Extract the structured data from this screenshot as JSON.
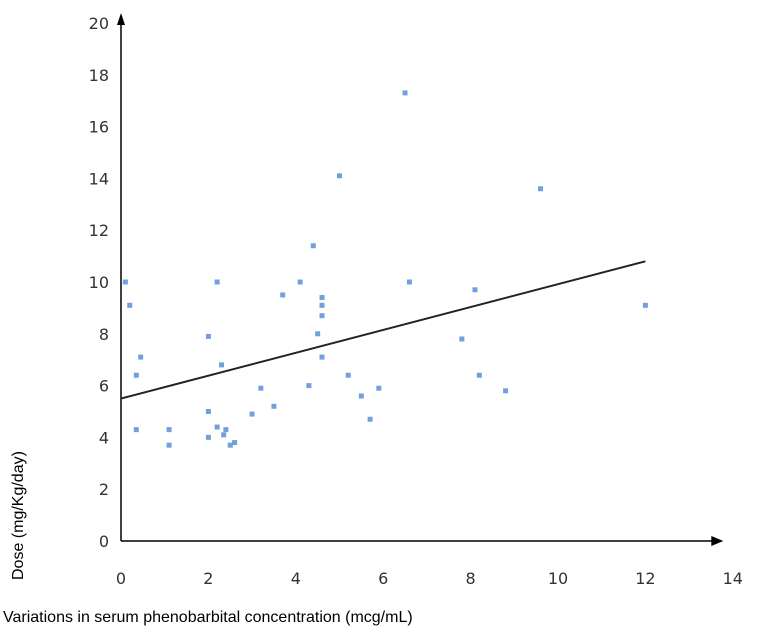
{
  "chart_data": {
    "type": "scatter",
    "title": "",
    "xlabel": "Variations in serum phenobarbital concentration (mcg/mL)",
    "ylabel": "Dose (mg/Kg/day)",
    "xlim": [
      0,
      14
    ],
    "ylim": [
      0,
      20
    ],
    "x_ticks": [
      "0",
      "2",
      "4",
      "6",
      "8",
      "10",
      "12",
      "14"
    ],
    "y_ticks": [
      "0",
      "2",
      "4",
      "6",
      "8",
      "10",
      "12",
      "14",
      "16",
      "18",
      "20"
    ],
    "grid": false,
    "legend": "none",
    "colors": {
      "points": "#5b8fd6",
      "trendline": "#222222",
      "axis": "#000000"
    },
    "points": [
      {
        "x": 0.1,
        "y": 10.0
      },
      {
        "x": 0.2,
        "y": 9.1
      },
      {
        "x": 0.35,
        "y": 6.4
      },
      {
        "x": 0.45,
        "y": 7.1
      },
      {
        "x": 0.35,
        "y": 4.3
      },
      {
        "x": 1.1,
        "y": 4.3
      },
      {
        "x": 1.1,
        "y": 3.7
      },
      {
        "x": 2.0,
        "y": 7.9
      },
      {
        "x": 2.0,
        "y": 5.0
      },
      {
        "x": 2.0,
        "y": 4.0
      },
      {
        "x": 2.2,
        "y": 10.0
      },
      {
        "x": 2.2,
        "y": 4.4
      },
      {
        "x": 2.3,
        "y": 6.8
      },
      {
        "x": 2.35,
        "y": 4.1
      },
      {
        "x": 2.4,
        "y": 4.3
      },
      {
        "x": 2.5,
        "y": 3.7
      },
      {
        "x": 2.6,
        "y": 3.8
      },
      {
        "x": 3.0,
        "y": 4.9
      },
      {
        "x": 3.2,
        "y": 5.9
      },
      {
        "x": 3.5,
        "y": 5.2
      },
      {
        "x": 3.7,
        "y": 9.5
      },
      {
        "x": 4.1,
        "y": 10.0
      },
      {
        "x": 4.3,
        "y": 6.0
      },
      {
        "x": 4.4,
        "y": 11.4
      },
      {
        "x": 4.5,
        "y": 8.0
      },
      {
        "x": 4.6,
        "y": 9.4
      },
      {
        "x": 4.6,
        "y": 9.1
      },
      {
        "x": 4.6,
        "y": 8.7
      },
      {
        "x": 4.6,
        "y": 7.1
      },
      {
        "x": 5.0,
        "y": 14.1
      },
      {
        "x": 5.2,
        "y": 6.4
      },
      {
        "x": 5.5,
        "y": 5.6
      },
      {
        "x": 5.7,
        "y": 4.7
      },
      {
        "x": 5.9,
        "y": 5.9
      },
      {
        "x": 6.5,
        "y": 17.3
      },
      {
        "x": 6.6,
        "y": 10.0
      },
      {
        "x": 7.8,
        "y": 7.8
      },
      {
        "x": 8.1,
        "y": 9.7
      },
      {
        "x": 8.2,
        "y": 6.4
      },
      {
        "x": 8.8,
        "y": 5.8
      },
      {
        "x": 9.6,
        "y": 13.6
      },
      {
        "x": 12.0,
        "y": 9.1
      }
    ],
    "trendline": {
      "x": [
        0,
        12
      ],
      "y": [
        5.5,
        10.8
      ]
    }
  }
}
